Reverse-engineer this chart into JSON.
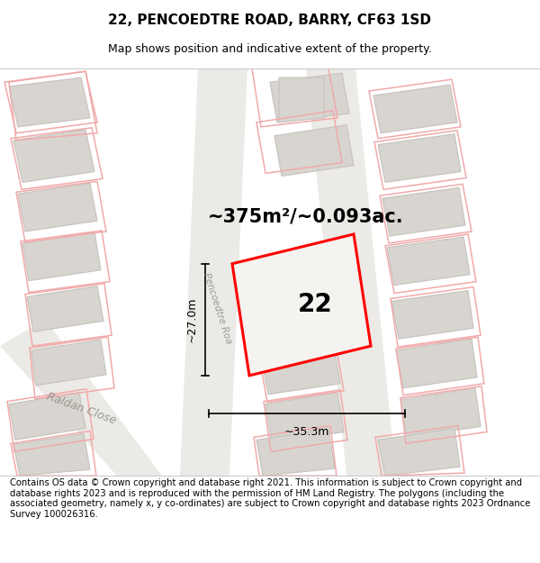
{
  "title": "22, PENCOEDTRE ROAD, BARRY, CF63 1SD",
  "subtitle": "Map shows position and indicative extent of the property.",
  "footer": "Contains OS data © Crown copyright and database right 2021. This information is subject to Crown copyright and database rights 2023 and is reproduced with the permission of HM Land Registry. The polygons (including the associated geometry, namely x, y co-ordinates) are subject to Crown copyright and database rights 2023 Ordnance Survey 100026316.",
  "area_label": "~375m²/~0.093ac.",
  "number_label": "22",
  "dim_height": "~27.0m",
  "dim_width": "~35.3m",
  "road_label": "Pencoedtre Roa",
  "street_label": "Raldan Close",
  "map_bg": "#f2f0ed",
  "building_fill": "#d8d5d0",
  "building_stroke": "#c8c5c0",
  "property_stroke": "#ff0000",
  "property_fill": "#f5f3f0",
  "dim_color": "#000000",
  "pink_stroke": "#f0aaaa",
  "title_fontsize": 11,
  "subtitle_fontsize": 9,
  "footer_fontsize": 7.2,
  "number_fontsize": 20,
  "area_fontsize": 15,
  "dim_fontsize": 9,
  "road_fontsize": 7.5,
  "street_fontsize": 9
}
